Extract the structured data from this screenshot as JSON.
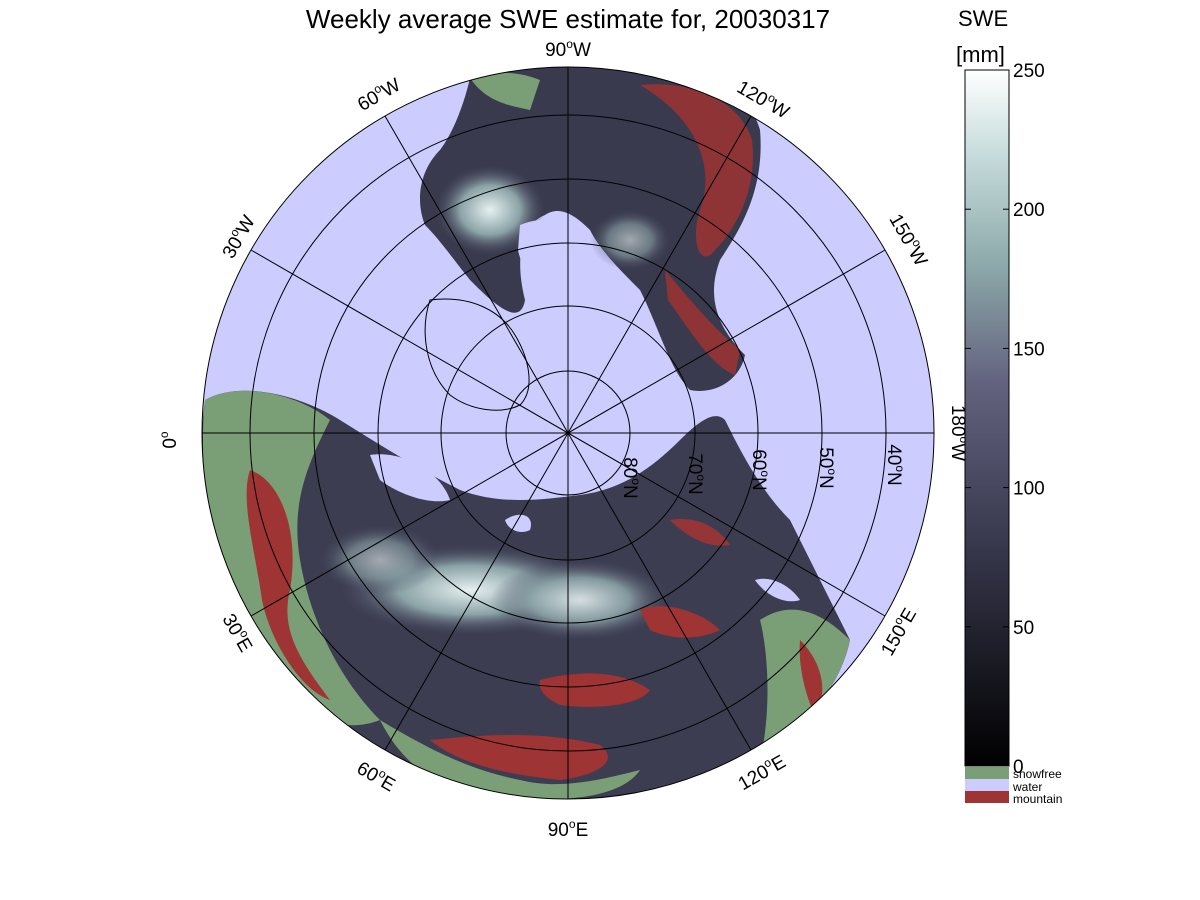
{
  "title": "Weekly average SWE estimate for, 20030317",
  "colorbar": {
    "label_line1": "SWE",
    "label_line2": "[mm]",
    "ticks": [
      0,
      50,
      100,
      150,
      200,
      250
    ],
    "tick_labels": [
      "0",
      "50",
      "100",
      "150",
      "200",
      "250"
    ],
    "range": [
      0,
      250
    ],
    "colormap": "bone",
    "colormap_colors": [
      "#000000",
      "#52526e",
      "#a6c6c6",
      "#ffffff"
    ]
  },
  "legend": [
    {
      "label": "snowfree",
      "color": "#7a9e76"
    },
    {
      "label": "water",
      "color": "#ccccff"
    },
    {
      "label": "mountain",
      "color": "#9e3434"
    }
  ],
  "map": {
    "projection": "north-polar",
    "ocean_color": "#ccccff",
    "longitude_labels": [
      {
        "text": "90",
        "sup": "o",
        "suffix": "W"
      },
      {
        "text": "120",
        "sup": "o",
        "suffix": "W"
      },
      {
        "text": "150",
        "sup": "o",
        "suffix": "W"
      },
      {
        "text": "180",
        "sup": "o",
        "suffix": "W"
      },
      {
        "text": "150",
        "sup": "o",
        "suffix": "E"
      },
      {
        "text": "120",
        "sup": "o",
        "suffix": "E"
      },
      {
        "text": "90",
        "sup": "o",
        "suffix": "E"
      },
      {
        "text": "60",
        "sup": "o",
        "suffix": "E"
      },
      {
        "text": "30",
        "sup": "o",
        "suffix": "E"
      },
      {
        "text": "0",
        "sup": "o",
        "suffix": ""
      },
      {
        "text": "30",
        "sup": "o",
        "suffix": "W"
      },
      {
        "text": "60",
        "sup": "o",
        "suffix": "W"
      }
    ],
    "latitude_labels": [
      {
        "text": "80",
        "sup": "o",
        "suffix": "N"
      },
      {
        "text": "70",
        "sup": "o",
        "suffix": "N"
      },
      {
        "text": "60",
        "sup": "o",
        "suffix": "N"
      },
      {
        "text": "50",
        "sup": "o",
        "suffix": "N"
      },
      {
        "text": "40",
        "sup": "o",
        "suffix": "N"
      }
    ]
  }
}
